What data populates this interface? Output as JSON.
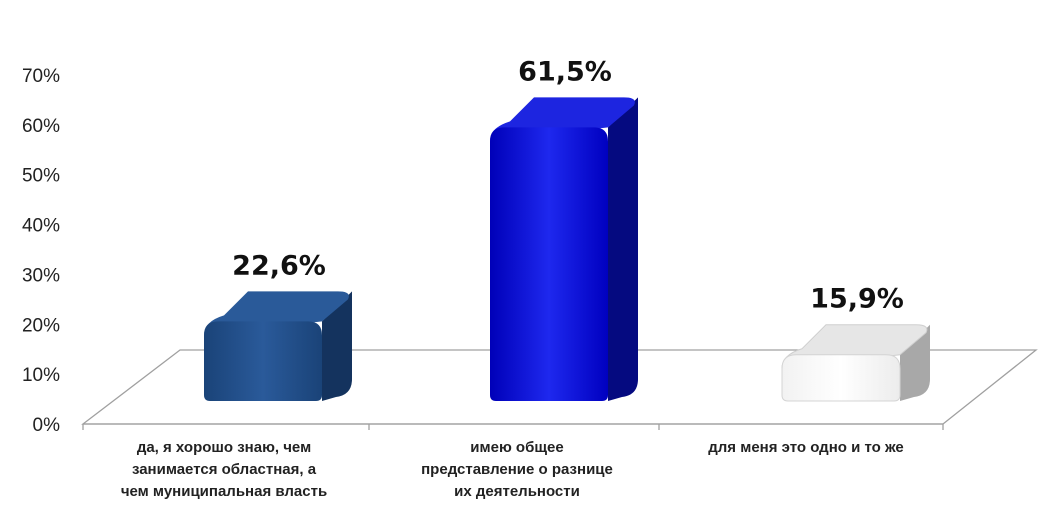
{
  "chart_data": {
    "type": "bar",
    "categories": [
      [
        "да, я хорошо знаю, чем",
        "занимается областная, а",
        "чем  муниципальная власть"
      ],
      [
        "имею общее",
        "представление о разнице",
        "их деятельности"
      ],
      [
        "для меня это одно и то же"
      ]
    ],
    "values": [
      22.6,
      61.5,
      15.9
    ],
    "data_labels": [
      "22,6%",
      "61,5%",
      "15,9%"
    ],
    "y_ticks": [
      "0%",
      "10%",
      "20%",
      "30%",
      "40%",
      "50%",
      "60%",
      "70%"
    ],
    "ylim": [
      0,
      70
    ],
    "grid": false,
    "legend": "none",
    "title": "",
    "xlabel": "",
    "ylabel": "",
    "colors": {
      "bars": [
        "#1f4e8c",
        "#0a14cc",
        "#ffffff"
      ],
      "bar_sides": [
        "#14335e",
        "#050a80",
        "#a8a8a8"
      ],
      "bar_tops": [
        "#2a5a99",
        "#1d25e0",
        "#e6e6e6"
      ],
      "floor_line": "#a0a0a0",
      "axis_line": "#a0a0a0"
    }
  }
}
